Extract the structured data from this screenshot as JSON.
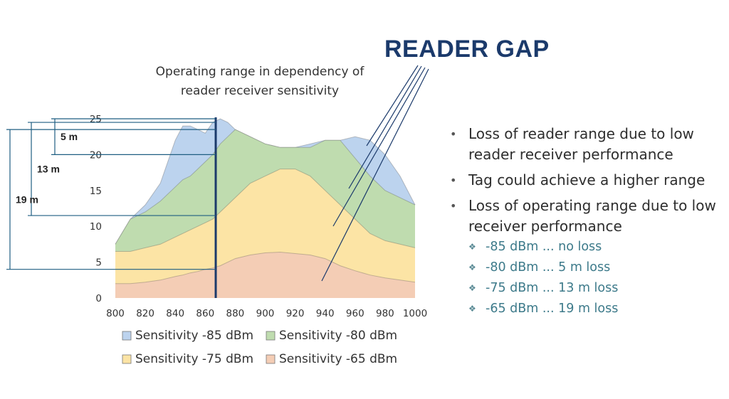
{
  "heading": "READER GAP",
  "bullets": [
    "Loss of reader range due to low reader receiver performance",
    "Tag could achieve a higher range",
    "Loss of operating range due to low receiver performance"
  ],
  "sub_bullets": [
    "-85 dBm ... no loss",
    "-80 dBm ... 5 m loss",
    "-75 dBm ... 13 m loss",
    "-65 dBm ... 19 m loss"
  ],
  "chart_data": {
    "type": "area",
    "title": "Operating range in dependency of reader receiver sensitivity",
    "title_lines": [
      "Operating range in dependency of",
      "reader receiver sensitivity"
    ],
    "xlabel": "",
    "ylabel": "",
    "xlim": [
      800,
      1000
    ],
    "ylim": [
      0,
      25
    ],
    "xticks": [
      800,
      820,
      840,
      860,
      880,
      900,
      920,
      940,
      960,
      980,
      1000
    ],
    "yticks": [
      0,
      5,
      10,
      15,
      20,
      25
    ],
    "grid": false,
    "legend_position": "bottom",
    "x": [
      800,
      810,
      820,
      830,
      840,
      845,
      850,
      855,
      860,
      865,
      870,
      875,
      880,
      890,
      900,
      910,
      920,
      930,
      940,
      950,
      960,
      970,
      980,
      990,
      1000
    ],
    "series": [
      {
        "name": "Sensitivity -85 dBm",
        "color": "#bcd3ee",
        "values": [
          7.5,
          11.0,
          13.0,
          16.0,
          22.0,
          24.0,
          24.0,
          23.5,
          23.0,
          24.5,
          25.0,
          24.5,
          23.5,
          22.5,
          21.5,
          21.0,
          21.0,
          21.5,
          22.0,
          22.0,
          22.5,
          22.0,
          20.0,
          17.0,
          13.0
        ]
      },
      {
        "name": "Sensitivity -80 dBm",
        "color": "#bfdcaf",
        "values": [
          7.5,
          11.0,
          12.0,
          13.5,
          15.5,
          16.5,
          17.0,
          18.0,
          19.0,
          20.0,
          21.5,
          22.5,
          23.5,
          22.5,
          21.5,
          21.0,
          21.0,
          21.0,
          22.0,
          22.0,
          19.5,
          17.0,
          15.0,
          14.0,
          13.0
        ]
      },
      {
        "name": "Sensitivity -75 dBm",
        "color": "#fce4a5",
        "values": [
          6.5,
          6.5,
          7.0,
          7.5,
          8.5,
          9.0,
          9.5,
          10.0,
          10.5,
          11.0,
          12.0,
          13.0,
          14.0,
          16.0,
          17.0,
          18.0,
          18.0,
          17.0,
          15.0,
          13.0,
          11.0,
          9.0,
          8.0,
          7.5,
          7.0
        ]
      },
      {
        "name": "Sensitivity -65 dBm",
        "color": "#f4cdb5",
        "values": [
          2.0,
          2.0,
          2.2,
          2.5,
          3.0,
          3.2,
          3.5,
          3.7,
          4.0,
          4.2,
          4.5,
          5.0,
          5.5,
          6.0,
          6.3,
          6.4,
          6.2,
          6.0,
          5.5,
          4.5,
          3.8,
          3.2,
          2.8,
          2.5,
          2.2
        ]
      }
    ],
    "marker_x": 867,
    "gap_annotations": [
      {
        "label": "5 m",
        "from_y": 25,
        "to_y": 20
      },
      {
        "label": "13 m",
        "from_y": 24.5,
        "to_y": 11.5
      },
      {
        "label": "19 m",
        "from_y": 23.5,
        "to_y": 4.0
      }
    ]
  }
}
